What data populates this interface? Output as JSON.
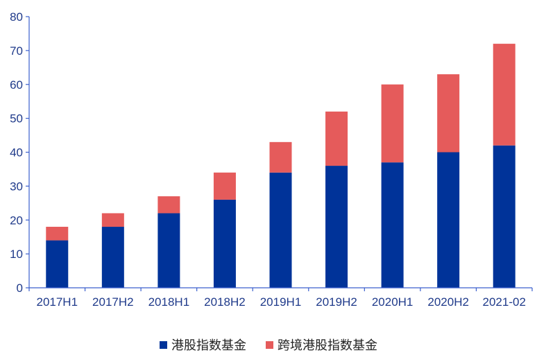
{
  "chart_data": {
    "type": "bar",
    "stacked": true,
    "title": "",
    "xlabel": "",
    "ylabel": "",
    "categories": [
      "2017H1",
      "2017H2",
      "2018H1",
      "2018H2",
      "2019H1",
      "2019H2",
      "2020H1",
      "2020H2",
      "2021-02"
    ],
    "ylim": [
      0,
      80
    ],
    "yticks": [
      0,
      10,
      20,
      30,
      40,
      50,
      60,
      70,
      80
    ],
    "grid": false,
    "legend_position": "bottom",
    "series": [
      {
        "name": "港股指数基金",
        "color": "#003399",
        "values": [
          14,
          18,
          22,
          26,
          34,
          36,
          37,
          40,
          42
        ]
      },
      {
        "name": "跨境港股指数基金",
        "color": "#e55b5b",
        "values": [
          4,
          4,
          5,
          8,
          9,
          16,
          23,
          23,
          30
        ]
      }
    ]
  }
}
